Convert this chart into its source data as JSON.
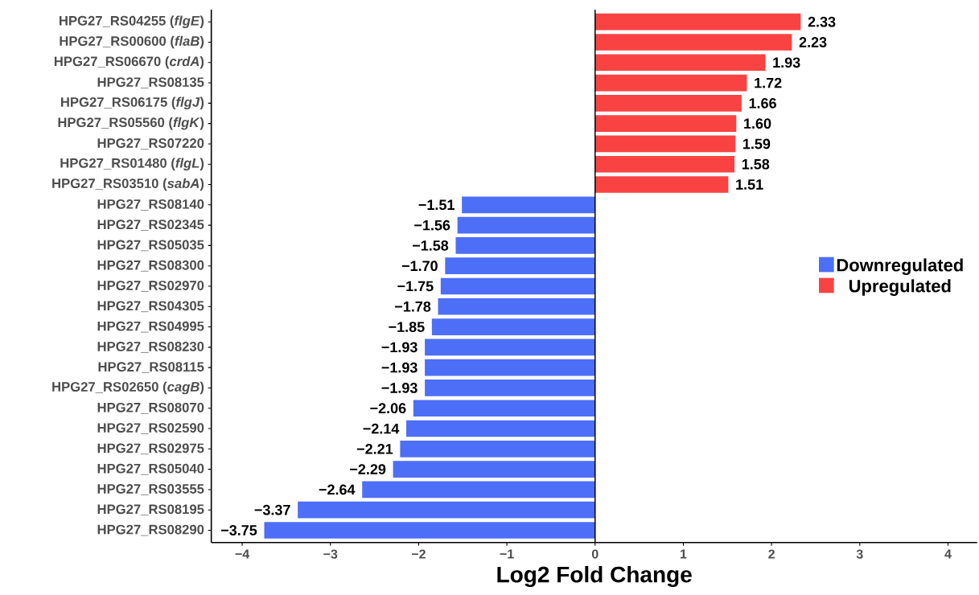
{
  "chart_data": {
    "type": "bar",
    "orientation": "horizontal",
    "categories": [
      "HPG27_RS04255 (*flgE*)",
      "HPG27_RS00600 (*flaB*)",
      "HPG27_RS06670 (*crdA*)",
      "HPG27_RS08135",
      "HPG27_RS06175 (*flgJ*)",
      "HPG27_RS05560 (*flgK*)",
      "HPG27_RS07220",
      "HPG27_RS01480 (*flgL*)",
      "HPG27_RS03510 (*sabA*)",
      "HPG27_RS08140",
      "HPG27_RS02345",
      "HPG27_RS05035",
      "HPG27_RS08300",
      "HPG27_RS02970",
      "HPG27_RS04305",
      "HPG27_RS04995",
      "HPG27_RS08230",
      "HPG27_RS08115",
      "HPG27_RS02650 (*cagB*)",
      "HPG27_RS08070",
      "HPG27_RS02590",
      "HPG27_RS02975",
      "HPG27_RS05040",
      "HPG27_RS03555",
      "HPG27_RS08195",
      "HPG27_RS08290"
    ],
    "series": [
      {
        "name": "Downregulated",
        "color": "#4d6ef7",
        "values": [
          null,
          null,
          null,
          null,
          null,
          null,
          null,
          null,
          null,
          -1.51,
          -1.56,
          -1.58,
          -1.7,
          -1.75,
          -1.78,
          -1.85,
          -1.93,
          -1.93,
          -1.93,
          -2.06,
          -2.14,
          -2.21,
          -2.29,
          -2.64,
          -3.37,
          -3.75
        ],
        "value_labels": [
          null,
          null,
          null,
          null,
          null,
          null,
          null,
          null,
          null,
          "−1.51",
          "−1.56",
          "−1.58",
          "−1.70",
          "−1.75",
          "−1.78",
          "−1.85",
          "−1.93",
          "−1.93",
          "−1.93",
          "−2.06",
          "−2.14",
          "−2.21",
          "−2.29",
          "−2.64",
          "−3.37",
          "−3.75"
        ]
      },
      {
        "name": "Upregulated",
        "color": "#f94343",
        "values": [
          2.33,
          2.23,
          1.93,
          1.72,
          1.66,
          1.6,
          1.59,
          1.58,
          1.51,
          null,
          null,
          null,
          null,
          null,
          null,
          null,
          null,
          null,
          null,
          null,
          null,
          null,
          null,
          null,
          null,
          null
        ],
        "value_labels": [
          "2.33",
          "2.23",
          "1.93",
          "1.72",
          "1.66",
          "1.60",
          "1.59",
          "1.58",
          "1.51",
          null,
          null,
          null,
          null,
          null,
          null,
          null,
          null,
          null,
          null,
          null,
          null,
          null,
          null,
          null,
          null,
          null
        ]
      }
    ],
    "xlabel": "Log2 Fold Change",
    "xlim": [
      -4.35,
      4.33
    ],
    "xticks": [
      {
        "value": -4,
        "label": "−4"
      },
      {
        "value": -3,
        "label": "−3"
      },
      {
        "value": -2,
        "label": "−2"
      },
      {
        "value": -1,
        "label": "−1"
      },
      0,
      1,
      2,
      3,
      4
    ],
    "ref_lines": [
      {
        "axis": "x",
        "value": 0,
        "color": "#000000"
      }
    ],
    "grid": false,
    "legend": "right"
  }
}
